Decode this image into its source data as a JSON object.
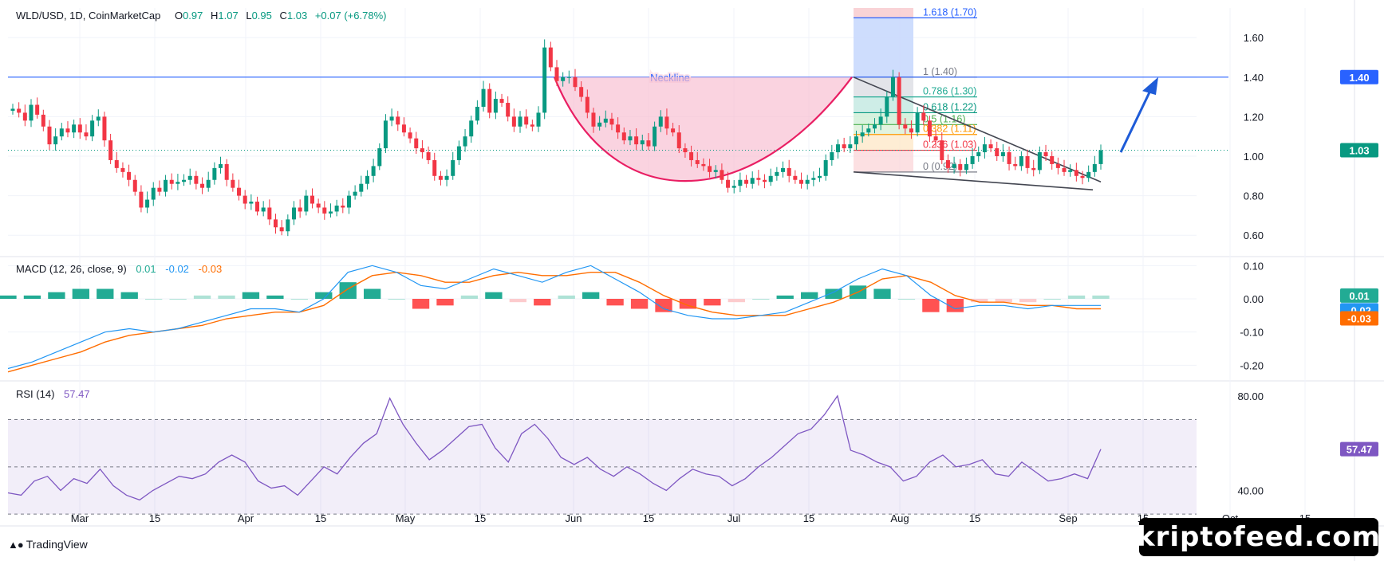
{
  "header": {
    "symbol": "WLD/USD, 1D, CoinMarketCap",
    "open_label": "O",
    "open": "0.97",
    "high_label": "H",
    "high": "1.07",
    "low_label": "L",
    "low": "0.95",
    "close_label": "C",
    "close": "1.03",
    "change": "+0.07 (+6.78%)"
  },
  "macd_header": {
    "label": "MACD (12, 26, close, 9)",
    "hist": "0.01",
    "macd": "-0.02",
    "signal": "-0.03"
  },
  "rsi_header": {
    "label": "RSI (14)",
    "value": "57.47"
  },
  "branding": {
    "logo_text": "TradingView",
    "watermark": "kriptofeed.com"
  },
  "colors": {
    "up": "#089981",
    "down": "#f23645",
    "neckline": "#2962ff",
    "macd": "#2196f3",
    "signal": "#ff6d00",
    "rsi": "#7e57c2",
    "cup": "#e91e63",
    "arrow": "#1e5bd8"
  },
  "chart_data": [
    {
      "type": "candlestick",
      "title": "WLD/USD, 1D, CoinMarketCap",
      "x_tick_labels": [
        "Mar",
        "15",
        "Apr",
        "15",
        "May",
        "15",
        "Jun",
        "15",
        "Jul",
        "15",
        "Aug",
        "15",
        "Sep",
        "15",
        "Oct",
        "15"
      ],
      "y_tick_labels": [
        "1.60",
        "1.40",
        "1.20",
        "1.00",
        "0.80",
        "0.60"
      ],
      "ylim": [
        0.5,
        1.75
      ],
      "price_labels": [
        {
          "value": 1.4,
          "text": "1.40",
          "color": "#2962ff"
        },
        {
          "value": 1.03,
          "text": "1.03",
          "color": "#089981"
        }
      ],
      "close_prices": [
        1.24,
        1.22,
        1.18,
        1.26,
        1.21,
        1.15,
        1.06,
        1.1,
        1.14,
        1.12,
        1.16,
        1.12,
        1.1,
        1.18,
        1.2,
        1.08,
        0.98,
        0.94,
        0.92,
        0.88,
        0.82,
        0.74,
        0.78,
        0.84,
        0.82,
        0.88,
        0.86,
        0.87,
        0.88,
        0.9,
        0.86,
        0.84,
        0.88,
        0.94,
        0.96,
        0.88,
        0.84,
        0.8,
        0.76,
        0.77,
        0.72,
        0.74,
        0.68,
        0.64,
        0.62,
        0.68,
        0.74,
        0.72,
        0.8,
        0.76,
        0.74,
        0.71,
        0.72,
        0.75,
        0.74,
        0.8,
        0.82,
        0.86,
        0.9,
        0.95,
        1.04,
        1.18,
        1.2,
        1.16,
        1.12,
        1.09,
        1.04,
        1.02,
        0.98,
        0.9,
        0.88,
        0.9,
        0.98,
        1.05,
        1.1,
        1.18,
        1.25,
        1.34,
        1.22,
        1.29,
        1.27,
        1.2,
        1.15,
        1.2,
        1.16,
        1.15,
        1.22,
        1.55,
        1.45,
        1.38,
        1.4,
        1.4,
        1.35,
        1.3,
        1.22,
        1.15,
        1.17,
        1.19,
        1.16,
        1.12,
        1.08,
        1.1,
        1.06,
        1.08,
        1.05,
        1.15,
        1.2,
        1.14,
        1.12,
        1.04,
        1.02,
        0.98,
        0.96,
        0.95,
        0.92,
        0.93,
        0.88,
        0.84,
        0.85,
        0.88,
        0.86,
        0.89,
        0.88,
        0.87,
        0.9,
        0.92,
        0.94,
        0.9,
        0.88,
        0.86,
        0.88,
        0.89,
        0.9,
        0.98,
        1.02,
        1.06,
        1.04,
        1.06,
        1.1,
        1.12,
        1.14,
        1.16,
        1.2,
        1.3,
        1.4,
        1.16,
        1.14,
        1.12,
        1.22,
        1.18,
        1.1,
        1.08,
        0.98,
        0.94,
        0.96,
        0.93,
        0.96,
        1.0,
        1.02,
        1.06,
        1.04,
        1.0,
        1.02,
        0.96,
        0.95,
        1.0,
        0.94,
        0.93,
        1.02,
        1.0,
        0.96,
        0.94,
        0.92,
        0.93,
        0.9,
        0.89,
        0.92,
        0.96,
        1.03
      ],
      "annotations": [
        {
          "type": "horizontal_line",
          "label": "Neckline",
          "value": 1.4
        },
        {
          "type": "cup_curve",
          "from_value": 1.4,
          "bottom_value": 0.8,
          "to_value": 1.4
        },
        {
          "type": "falling_wedge",
          "upper": [
            1.4,
            0.87
          ],
          "lower": [
            0.92,
            0.83
          ]
        },
        {
          "type": "arrow",
          "direction": "up",
          "target": 1.4
        }
      ],
      "fibonacci": [
        {
          "level": "1.618",
          "value": 1.7,
          "text": "1.618 (1.70)"
        },
        {
          "level": "1",
          "value": 1.4,
          "text": "1 (1.40)"
        },
        {
          "level": "0.786",
          "value": 1.3,
          "text": "0.786 (1.30)"
        },
        {
          "level": "0.618",
          "value": 1.22,
          "text": "0.618 (1.22)"
        },
        {
          "level": "0.5",
          "value": 1.16,
          "text": "0.5 (1.16)"
        },
        {
          "level": "0.382",
          "value": 1.11,
          "text": "0.382 (1.11)"
        },
        {
          "level": "0.236",
          "value": 1.03,
          "text": "0.236 (1.03)"
        },
        {
          "level": "0",
          "value": 0.92,
          "text": "0 (0.92)"
        }
      ]
    },
    {
      "type": "line",
      "title": "MACD (12, 26, close, 9)",
      "y_tick_labels": [
        "0.10",
        "0.00",
        "-0.10",
        "-0.20"
      ],
      "ylim": [
        -0.24,
        0.12
      ],
      "series": [
        {
          "name": "MACD",
          "values": [
            -0.21,
            -0.19,
            -0.16,
            -0.13,
            -0.1,
            -0.09,
            -0.1,
            -0.09,
            -0.07,
            -0.05,
            -0.03,
            -0.03,
            -0.04,
            0.0,
            0.08,
            0.1,
            0.08,
            0.04,
            0.03,
            0.06,
            0.09,
            0.07,
            0.05,
            0.08,
            0.1,
            0.06,
            0.02,
            -0.03,
            -0.05,
            -0.06,
            -0.06,
            -0.05,
            -0.04,
            -0.01,
            0.02,
            0.06,
            0.09,
            0.07,
            0.01,
            -0.03,
            -0.02,
            -0.02,
            -0.03,
            -0.02,
            -0.02,
            -0.02
          ]
        },
        {
          "name": "Signal",
          "values": [
            -0.22,
            -0.2,
            -0.18,
            -0.16,
            -0.13,
            -0.11,
            -0.1,
            -0.09,
            -0.08,
            -0.06,
            -0.05,
            -0.04,
            -0.04,
            -0.02,
            0.03,
            0.07,
            0.08,
            0.07,
            0.05,
            0.05,
            0.07,
            0.08,
            0.07,
            0.07,
            0.08,
            0.08,
            0.05,
            0.01,
            -0.02,
            -0.04,
            -0.05,
            -0.05,
            -0.05,
            -0.03,
            -0.01,
            0.02,
            0.06,
            0.07,
            0.05,
            0.01,
            -0.01,
            -0.01,
            -0.02,
            -0.02,
            -0.03,
            -0.03
          ]
        }
      ],
      "price_labels": [
        {
          "value": 0.01,
          "text": "0.01",
          "color": "#22ab94"
        },
        {
          "value": -0.02,
          "text": "-0.02",
          "color": "#2196f3"
        },
        {
          "value": -0.03,
          "text": "-0.03",
          "color": "#ff6d00"
        }
      ]
    },
    {
      "type": "line",
      "title": "RSI (14)",
      "y_tick_labels": [
        "80.00",
        "40.00"
      ],
      "ylim": [
        25,
        85
      ],
      "bands": [
        30,
        50,
        70
      ],
      "series": [
        {
          "name": "RSI",
          "values": [
            39,
            38,
            44,
            46,
            40,
            45,
            43,
            49,
            42,
            38,
            36,
            40,
            43,
            46,
            45,
            47,
            52,
            55,
            52,
            44,
            41,
            42,
            38,
            44,
            50,
            47,
            54,
            60,
            64,
            79,
            68,
            60,
            53,
            57,
            62,
            67,
            68,
            58,
            52,
            64,
            68,
            62,
            54,
            51,
            54,
            49,
            46,
            50,
            47,
            43,
            40,
            45,
            49,
            47,
            46,
            42,
            45,
            50,
            54,
            59,
            64,
            66,
            72,
            80,
            57,
            55,
            52,
            50,
            44,
            46,
            52,
            55,
            50,
            51,
            53,
            47,
            46,
            52,
            48,
            44,
            45,
            47,
            45,
            57.47
          ]
        }
      ],
      "price_labels": [
        {
          "value": 57.47,
          "text": "57.47",
          "color": "#7e57c2"
        }
      ]
    }
  ]
}
